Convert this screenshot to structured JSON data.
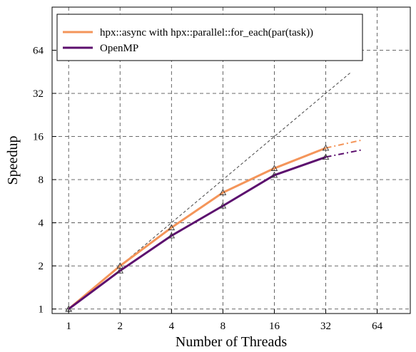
{
  "chart_data": {
    "type": "line",
    "xlabel": "Number of Threads",
    "ylabel": "Speedup",
    "x_scale": "log2",
    "y_scale": "log2",
    "xlim": [
      0.8,
      100
    ],
    "ylim": [
      0.93,
      128
    ],
    "x_ticks": [
      1,
      2,
      4,
      8,
      16,
      32,
      64
    ],
    "x_tick_labels": [
      "1",
      "2",
      "4",
      "8",
      "16",
      "32",
      "64"
    ],
    "y_ticks": [
      1,
      2,
      4,
      8,
      16,
      32,
      64
    ],
    "y_tick_labels": [
      "1",
      "2",
      "4",
      "8",
      "16",
      "32",
      "64"
    ],
    "grid": true,
    "legend_position": "top-left",
    "series": [
      {
        "name": "hpx::async with hpx::parallel::for_each(par(task))",
        "color": "#f4955a",
        "x": [
          1,
          2,
          4,
          8,
          16,
          32
        ],
        "y": [
          1.0,
          2.0,
          3.7,
          6.5,
          9.6,
          13.3
        ],
        "extrapolation": {
          "x": [
            32,
            52
          ],
          "y": [
            13.3,
            15.1
          ]
        }
      },
      {
        "name": "OpenMP",
        "color": "#5c0f6e",
        "x": [
          1,
          2,
          4,
          8,
          16,
          32
        ],
        "y": [
          1.0,
          1.85,
          3.25,
          5.25,
          8.6,
          11.5
        ],
        "extrapolation": {
          "x": [
            32,
            52
          ],
          "y": [
            11.5,
            12.9
          ]
        }
      }
    ],
    "reference_line": {
      "style": "dashed",
      "color": "#444444",
      "slope": "ideal",
      "from": [
        1,
        1
      ],
      "to": [
        45,
        45
      ]
    }
  }
}
